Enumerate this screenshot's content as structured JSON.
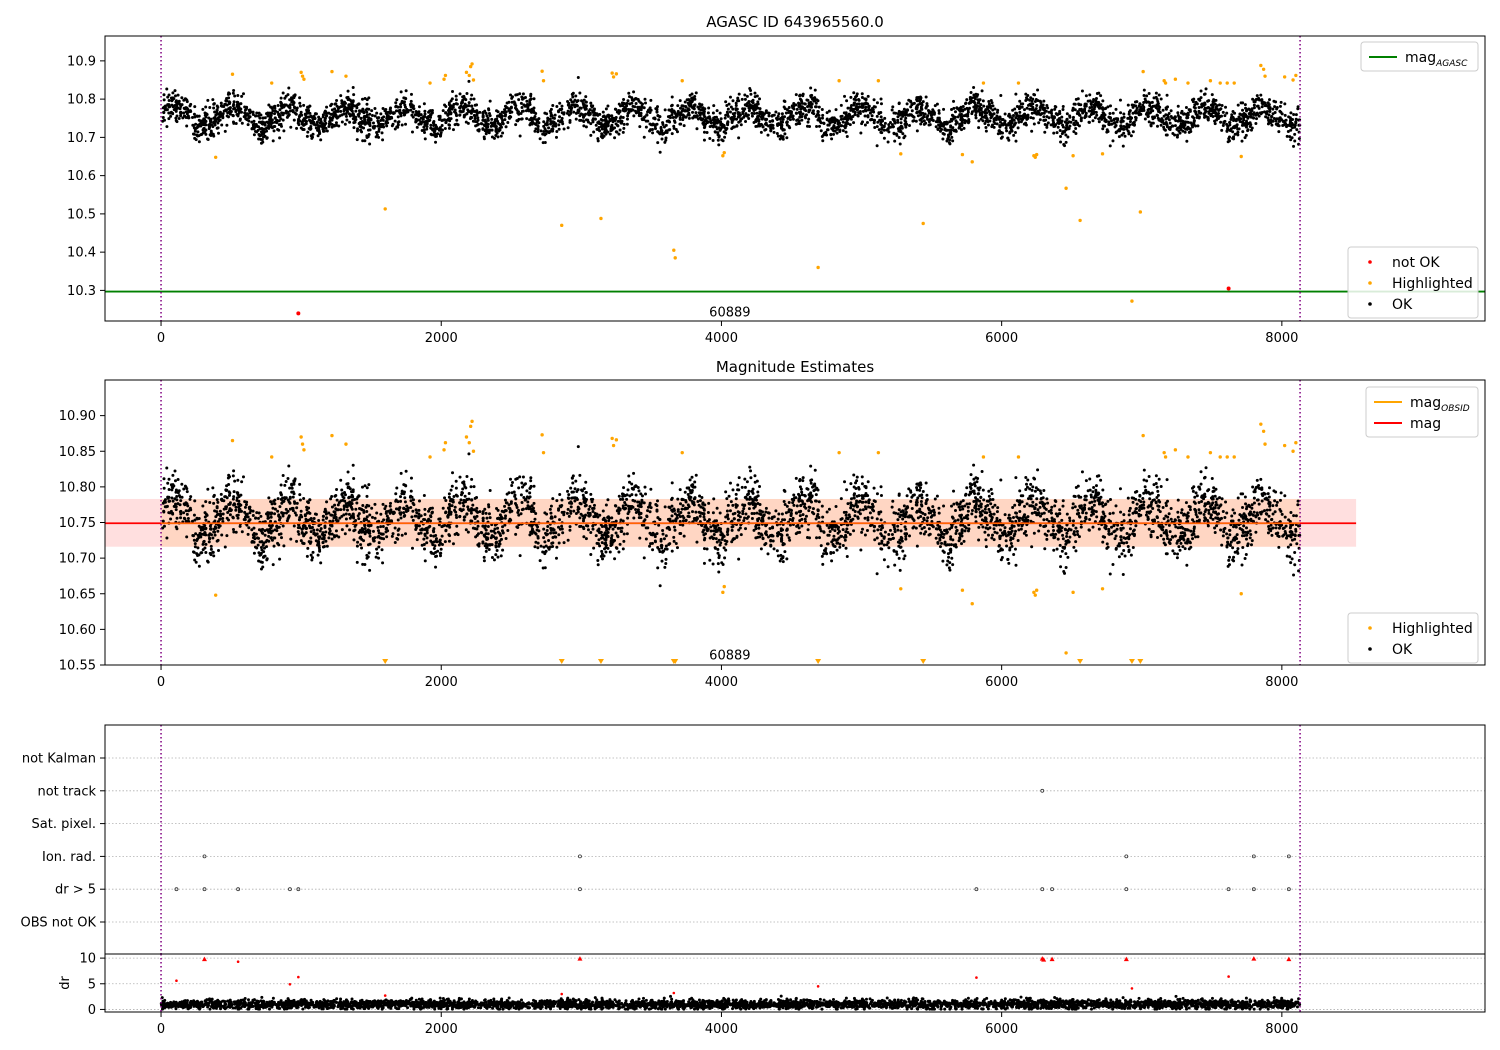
{
  "figure_title": "",
  "colors": {
    "ok": "#000000",
    "highlighted": "#ffa500",
    "not_ok": "#ff0000",
    "mag_agasc": "#008000",
    "mag_obsid": "#ffa500",
    "mag": "#ff0000",
    "obsid_boundary": "#800080",
    "band": "#ffc0c0",
    "grid": "#b0b0b0"
  },
  "chart_data": [
    {
      "id": "agasc",
      "type": "scatter",
      "title": "AGASC ID 643965560.0",
      "xlabel": "",
      "ylabel": "",
      "xlim": [
        -400,
        9450
      ],
      "ylim": [
        10.22,
        10.965
      ],
      "x_ticks": [
        0,
        2000,
        4000,
        6000,
        8000
      ],
      "y_ticks": [
        10.3,
        10.4,
        10.5,
        10.6,
        10.7,
        10.8,
        10.9
      ],
      "y_tick_labels": [
        "10.3",
        "10.4",
        "10.5",
        "10.6",
        "10.7",
        "10.8",
        "10.9"
      ],
      "obsid_bounds": [
        0,
        8130
      ],
      "obsid_label": {
        "text": "60889",
        "x": 4060,
        "y": 10.245
      },
      "hlines": [
        {
          "name": "mag_AGASC",
          "y": 10.297,
          "color": "#008000"
        }
      ],
      "ok_series": {
        "name": "OK",
        "x_range": [
          0,
          8130
        ],
        "base": 10.755,
        "sd": 0.03,
        "points": 4200
      },
      "highlighted": {
        "name": "Highlighted",
        "x": [
          390,
          510,
          790,
          1000,
          1010,
          1020,
          1220,
          1320,
          1600,
          1920,
          2020,
          2030,
          2180,
          2200,
          2210,
          2220,
          2230,
          2720,
          2730,
          2860,
          3140,
          3220,
          3230,
          3250,
          3660,
          3670,
          3720,
          4010,
          4020,
          4690,
          4840,
          5120,
          5280,
          5440,
          5720,
          5790,
          5870,
          6120,
          6230,
          6240,
          6250,
          6460,
          6510,
          6560,
          6720,
          6930,
          6990,
          7010,
          7160,
          7170,
          7240,
          7330,
          7490,
          7560,
          7610,
          7660,
          7710,
          7850,
          7870,
          7880,
          8020,
          8080,
          8100
        ],
        "y": [
          10.648,
          10.865,
          10.842,
          10.87,
          10.86,
          10.852,
          10.872,
          10.86,
          10.513,
          10.842,
          10.852,
          10.862,
          10.87,
          10.862,
          10.885,
          10.892,
          10.85,
          10.873,
          10.848,
          10.47,
          10.488,
          10.868,
          10.858,
          10.866,
          10.405,
          10.385,
          10.848,
          10.652,
          10.66,
          10.36,
          10.848,
          10.848,
          10.657,
          10.475,
          10.655,
          10.636,
          10.842,
          10.842,
          10.652,
          10.648,
          10.655,
          10.567,
          10.652,
          10.483,
          10.657,
          10.272,
          10.505,
          10.872,
          10.848,
          10.842,
          10.852,
          10.842,
          10.848,
          10.842,
          10.842,
          10.842,
          10.65,
          10.888,
          10.878,
          10.86,
          10.858,
          10.85,
          10.862
        ]
      },
      "not_ok": {
        "name": "not OK",
        "x": [
          980,
          7620
        ],
        "y": [
          10.24,
          10.305
        ]
      },
      "legend_top": [
        {
          "label": "mag",
          "sub": "AGASC",
          "kind": "line",
          "color": "#008000"
        }
      ],
      "legend_bottom": [
        {
          "label": "not OK",
          "kind": "dot",
          "color": "#ff0000"
        },
        {
          "label": "Highlighted",
          "kind": "dot",
          "color": "#ffa500"
        },
        {
          "label": "OK",
          "kind": "dot",
          "color": "#000000"
        }
      ]
    },
    {
      "id": "estimates",
      "type": "scatter",
      "title": "Magnitude Estimates",
      "xlabel": "",
      "ylabel": "",
      "xlim": [
        -400,
        9450
      ],
      "ylim": [
        10.55,
        10.95
      ],
      "x_ticks": [
        0,
        2000,
        4000,
        6000,
        8000
      ],
      "y_ticks": [
        10.55,
        10.6,
        10.65,
        10.7,
        10.75,
        10.8,
        10.85,
        10.9
      ],
      "y_tick_labels": [
        "10.55",
        "10.60",
        "10.65",
        "10.70",
        "10.75",
        "10.80",
        "10.85",
        "10.90"
      ],
      "obsid_bounds": [
        0,
        8130
      ],
      "obsid_label": {
        "text": "60889",
        "x": 4060,
        "y": 10.565
      },
      "mag_line": {
        "name": "mag",
        "y": 10.749,
        "x_range": [
          -400,
          8530
        ],
        "color": "#ff0000"
      },
      "mag_obsid_line": {
        "name": "mag_OBSID",
        "y": 10.749,
        "x_range": [
          0,
          8130
        ],
        "color": "#ffa500"
      },
      "band": {
        "y0": 10.716,
        "y1": 10.783,
        "x_range": [
          -400,
          8530
        ],
        "inner_x_range": [
          0,
          8130
        ]
      },
      "ok_series": {
        "name": "OK",
        "x_range": [
          0,
          8130
        ],
        "base": 10.755,
        "sd": 0.03,
        "points": 4200
      },
      "highlighted_ref": "agasc",
      "below_range_markers_x": [
        1600,
        2860,
        3140,
        3660,
        3670,
        4690,
        5440,
        6560,
        6930,
        6990
      ],
      "legend_top": [
        {
          "label": "mag",
          "sub": "OBSID",
          "kind": "line",
          "color": "#ffa500"
        },
        {
          "label": "mag",
          "sub": "",
          "kind": "line",
          "color": "#ff0000"
        }
      ],
      "legend_bottom": [
        {
          "label": "Highlighted",
          "kind": "dot",
          "color": "#ffa500"
        },
        {
          "label": "OK",
          "kind": "dot",
          "color": "#000000"
        }
      ]
    },
    {
      "id": "flags",
      "type": "scatter",
      "title": "",
      "xlabel": "",
      "ylabel": "",
      "xlim": [
        -400,
        9450
      ],
      "x_ticks": [
        0,
        2000,
        4000,
        6000,
        8000
      ],
      "obsid_bounds": [
        0,
        8130
      ],
      "categories": [
        "OBS not OK",
        "dr > 5",
        "Ion. rad.",
        "Sat. pixel.",
        "not track",
        "not Kalman"
      ],
      "flag_points": {
        "not Kalman": [],
        "not track": [
          6290
        ],
        "Sat. pixel.": [],
        "Ion. rad.": [
          310,
          2990,
          6890,
          7800,
          8050
        ],
        "dr > 5": [
          110,
          310,
          550,
          920,
          980,
          2990,
          5820,
          6290,
          6360,
          6890,
          7620,
          7800,
          8050
        ],
        "OBS not OK": []
      }
    },
    {
      "id": "dr",
      "type": "scatter",
      "title": "",
      "xlabel": "",
      "ylabel": "dr",
      "xlim": [
        -400,
        9450
      ],
      "ylim": [
        -0.5,
        10.8
      ],
      "x_ticks": [
        0,
        2000,
        4000,
        6000,
        8000
      ],
      "x_tick_labels": [
        "0",
        "2000",
        "4000",
        "6000",
        "8000"
      ],
      "y_ticks": [
        0,
        5,
        10
      ],
      "y_tick_labels": [
        "0",
        "5",
        "10"
      ],
      "obsid_bounds": [
        0,
        8130
      ],
      "ok_series": {
        "name": "dr",
        "x_range": [
          0,
          8130
        ],
        "base": 1.0,
        "sd": 0.45,
        "points": 4200
      },
      "large_dr": {
        "x": [
          110,
          310,
          550,
          920,
          980,
          1600,
          2860,
          2990,
          3660,
          4690,
          5820,
          6290,
          6300,
          6360,
          6890,
          6930,
          7620,
          7800,
          8050
        ],
        "y": [
          5.6,
          9.8,
          9.3,
          4.9,
          6.3,
          2.7,
          3.0,
          9.9,
          3.2,
          4.5,
          6.2,
          9.9,
          9.7,
          9.8,
          9.8,
          4.1,
          6.4,
          9.9,
          9.8
        ]
      }
    }
  ]
}
